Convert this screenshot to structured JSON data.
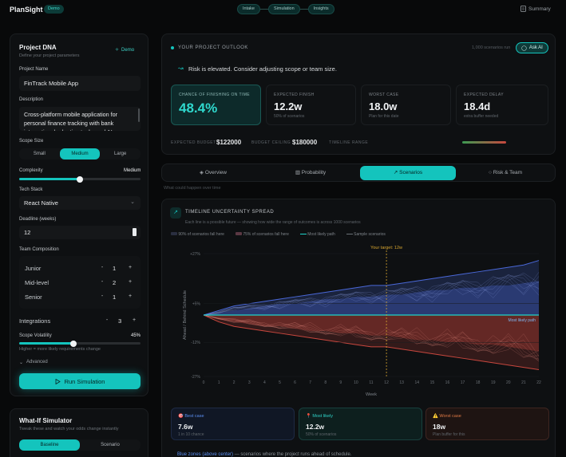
{
  "app": {
    "logo": "PlanSight",
    "demo_badge": "Demo"
  },
  "steps": [
    "Intake",
    "Simulation",
    "Insights"
  ],
  "summary_label": "Summary",
  "dna": {
    "title": "Project DNA",
    "subtitle": "Define your project parameters",
    "demo_label": "Demo",
    "name_label": "Project Name",
    "name_value": "FinTrack Mobile App",
    "desc_label": "Description",
    "desc_value": "Cross-platform mobile application for personal finance tracking with bank integration, budgeting tools, and AI-",
    "scope_label": "Scope Size",
    "scope_options": [
      "Small",
      "Medium",
      "Large"
    ],
    "scope_selected": "Medium",
    "complexity_label": "Complexity",
    "complexity_value": "Medium",
    "complexity_level": 0.5,
    "tech_label": "Tech Stack",
    "tech_value": "React Native",
    "deadline_label": "Deadline (weeks)",
    "deadline_value": "12",
    "team_label": "Team Composition",
    "team": [
      {
        "role": "Junior",
        "count": "1"
      },
      {
        "role": "Mid-level",
        "count": "2"
      },
      {
        "role": "Senior",
        "count": "1"
      }
    ],
    "integrations_label": "Integrations",
    "integrations_value": "3",
    "volatility_label": "Scope Volatility",
    "volatility_value": "45%",
    "volatility_level": 0.45,
    "volatility_hint": "Higher = more likely requirements change",
    "advanced_label": "Advanced",
    "run_label": "Run Simulation"
  },
  "whatif": {
    "title": "What-If Simulator",
    "subtitle": "Tweak these and watch your odds change instantly",
    "options": [
      "Baseline",
      "Scenario"
    ]
  },
  "outlook": {
    "header": "YOUR PROJECT OUTLOOK",
    "runs": "1,000 scenarios run",
    "ask_label": "Ask AI",
    "alert": "Risk is elevated. Consider adjusting scope or team size.",
    "metrics": [
      {
        "title": "CHANCE OF FINISHING ON TIME",
        "value": "48.4%",
        "sub": ""
      },
      {
        "title": "EXPECTED FINISH",
        "value": "12.2w",
        "sub": "50% of scenarios"
      },
      {
        "title": "WORST CASE",
        "value": "18.0w",
        "sub": "Plan for this date"
      },
      {
        "title": "EXPECTED DELAY",
        "value": "18.4d",
        "sub": "extra buffer needed"
      }
    ],
    "budget_label": "EXPECTED BUDGET",
    "budget_value": "$122000",
    "ceiling_label": "BUDGET CEILING",
    "ceiling_value": "$180000",
    "range_label": "TIMELINE RANGE"
  },
  "tabs": [
    "Overview",
    "Probability",
    "Scenarios",
    "Risk & Team"
  ],
  "active_tab": "Scenarios",
  "tab_caption": "What could happen over time",
  "chart_panel": {
    "title": "TIMELINE UNCERTAINTY SPREAD",
    "subtitle": "Each line is a possible future — showing how wide the range of outcomes is across 1000 scenarios",
    "legend": [
      "90% of scenarios fall here",
      "75% of scenarios fall here",
      "Most likely path",
      "Sample scenarios"
    ]
  },
  "chart_data": {
    "type": "area",
    "x": [
      0,
      1,
      2,
      3,
      4,
      5,
      6,
      7,
      8,
      9,
      10,
      11,
      12,
      13,
      14,
      15,
      16,
      17,
      18,
      19,
      20,
      21,
      22
    ],
    "xlabel": "Week",
    "ylabel": "Ahead / Behind Schedule",
    "y_ticks": [
      "+27%",
      "+5%",
      "-12%",
      "-27%"
    ],
    "ylim": [
      -27,
      27
    ],
    "target_label": "Your target: 12w",
    "target_week": 12,
    "most_likely_label": "Most likely path",
    "band90_upper": [
      0,
      2,
      4,
      5,
      6,
      7,
      8,
      9,
      10,
      11,
      12,
      13,
      13,
      14,
      15,
      16,
      17,
      18,
      19,
      20,
      21,
      22,
      24
    ],
    "band90_lower": [
      0,
      -3,
      -5,
      -6,
      -7,
      -8,
      -9,
      -10,
      -11,
      -12,
      -13,
      -14,
      -14,
      -15,
      -16,
      -17,
      -18,
      -19,
      -20,
      -21,
      -22,
      -23,
      -24
    ],
    "band75_upper": [
      0,
      1,
      2,
      3,
      4,
      5,
      5,
      6,
      7,
      7,
      8,
      8,
      9,
      9,
      10,
      11,
      11,
      12,
      12,
      13,
      13,
      14,
      15
    ],
    "band75_lower": [
      0,
      -2,
      -3,
      -4,
      -5,
      -5,
      -6,
      -7,
      -7,
      -8,
      -8,
      -9,
      -9,
      -10,
      -11,
      -11,
      -12,
      -12,
      -13,
      -13,
      -14,
      -15,
      -16
    ],
    "most_likely": [
      0,
      0,
      0,
      0,
      0,
      0,
      0,
      0,
      0,
      0,
      0,
      0,
      0,
      0,
      0,
      0,
      0,
      0,
      0,
      0,
      0,
      0,
      0
    ],
    "colors": {
      "upper": "#4a68d8",
      "lower": "#c8473e",
      "most_likely": "#1fd3ca",
      "target": "#d8a630"
    }
  },
  "scenarios": [
    {
      "icon": "🎯",
      "title": "Best case",
      "value": "7.6w",
      "sub": "1 in 10 chance",
      "color": "#5b8ef0"
    },
    {
      "icon": "📍",
      "title": "Most likely",
      "value": "12.2w",
      "sub": "50% of scenarios",
      "color": "#2fd3c8"
    },
    {
      "icon": "⚠️",
      "title": "Worst case",
      "value": "18w",
      "sub": "Plan buffer for this",
      "color": "#e07a45"
    }
  ],
  "footnote_bold": "Blue zones (above center)",
  "footnote_rest": " — scenarios where the project runs ahead of schedule."
}
